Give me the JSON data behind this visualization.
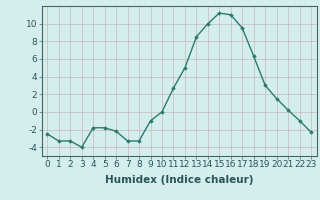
{
  "x": [
    0,
    1,
    2,
    3,
    4,
    5,
    6,
    7,
    8,
    9,
    10,
    11,
    12,
    13,
    14,
    15,
    16,
    17,
    18,
    19,
    20,
    21,
    22,
    23
  ],
  "y": [
    -2.5,
    -3.3,
    -3.3,
    -4.0,
    -1.8,
    -1.8,
    -2.2,
    -3.3,
    -3.3,
    -1.0,
    0.0,
    2.7,
    5.0,
    8.5,
    10.0,
    11.2,
    11.0,
    9.5,
    6.3,
    3.0,
    1.5,
    0.2,
    -1.0,
    -2.3
  ],
  "line_color": "#2d7a6e",
  "marker": "D",
  "marker_size": 1.8,
  "bg_color": "#d4eeee",
  "grid_color": "#c8b8b8",
  "xlabel": "Humidex (Indice chaleur)",
  "xlim": [
    -0.5,
    23.5
  ],
  "ylim": [
    -5,
    12
  ],
  "yticks": [
    -4,
    -2,
    0,
    2,
    4,
    6,
    8,
    10
  ],
  "xticks": [
    0,
    1,
    2,
    3,
    4,
    5,
    6,
    7,
    8,
    9,
    10,
    11,
    12,
    13,
    14,
    15,
    16,
    17,
    18,
    19,
    20,
    21,
    22,
    23
  ],
  "tick_fontsize": 6.5,
  "xlabel_fontsize": 7.5,
  "spine_color": "#446666",
  "line_width": 1.0
}
